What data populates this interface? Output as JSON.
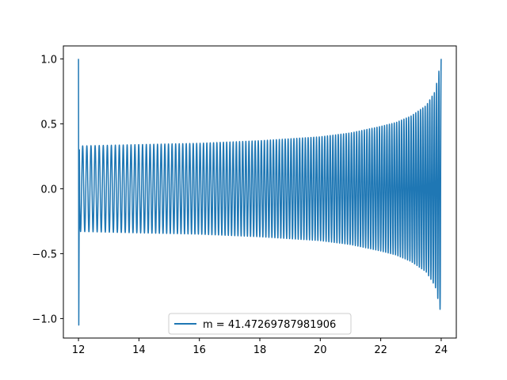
{
  "chart_data": {
    "type": "line",
    "title": "",
    "xlabel": "",
    "ylabel": "",
    "xlim": [
      11.5,
      24.5
    ],
    "ylim": [
      -1.15,
      1.1
    ],
    "x_ticks": [
      12,
      14,
      16,
      18,
      20,
      22,
      24
    ],
    "x_tick_labels": [
      "12",
      "14",
      "16",
      "18",
      "20",
      "22",
      "24"
    ],
    "y_ticks": [
      1.0,
      0.5,
      0.0,
      -0.5,
      -1.0
    ],
    "y_tick_labels": [
      "1.0",
      "0.5",
      "0.0",
      "−0.5",
      "−1.0"
    ],
    "grid": false,
    "legend_position": "bottom-center",
    "series": [
      {
        "name": "m = 41.47269787981906",
        "color": "#1f77b4",
        "description_points": {
          "x_start": 12,
          "x_end": 24,
          "start_spike_max": 1.0,
          "start_spike_min": -1.05,
          "envelope_x": [
            12.1,
            14,
            16,
            18,
            20,
            21,
            22,
            22.5,
            23,
            23.5,
            23.8,
            24
          ],
          "envelope_upper": [
            0.33,
            0.34,
            0.35,
            0.37,
            0.4,
            0.43,
            0.48,
            0.51,
            0.56,
            0.64,
            0.75,
            1.0
          ],
          "envelope_lower": [
            -0.33,
            -0.34,
            -0.35,
            -0.37,
            -0.4,
            -0.43,
            -0.48,
            -0.51,
            -0.56,
            -0.64,
            -0.75,
            -0.97
          ],
          "oscillation_count": 120
        }
      }
    ]
  }
}
